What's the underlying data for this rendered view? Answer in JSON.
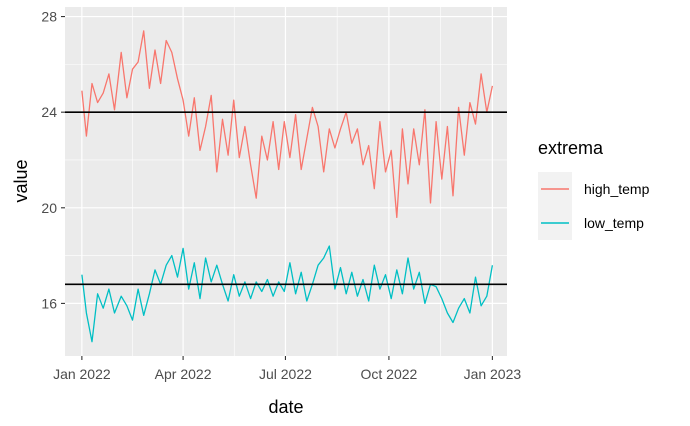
{
  "chart_data": {
    "type": "line",
    "title": "",
    "xlabel": "date",
    "ylabel": "value",
    "xlim": [
      "2021-12-17",
      "2023-01-14"
    ],
    "ylim": [
      13.8,
      28.4
    ],
    "x_ticks": [
      {
        "date": "2022-01-01",
        "label": "Jan 2022"
      },
      {
        "date": "2022-04-01",
        "label": "Apr 2022"
      },
      {
        "date": "2022-07-01",
        "label": "Jul 2022"
      },
      {
        "date": "2022-10-01",
        "label": "Oct 2022"
      },
      {
        "date": "2023-01-01",
        "label": "Jan 2023"
      }
    ],
    "y_ticks": [
      16,
      20,
      24,
      28
    ],
    "grid": true,
    "panel_background": "#EBEBEB",
    "legend": {
      "title": "extrema",
      "position": "right",
      "entries": [
        {
          "label": "high_temp",
          "color": "#F8766D"
        },
        {
          "label": "low_temp",
          "color": "#00BFC4"
        }
      ]
    },
    "hlines": [
      24.0,
      16.8
    ],
    "series": [
      {
        "name": "high_temp",
        "color": "#F8766D",
        "x": [
          "2022-01-01",
          "2022-01-05",
          "2022-01-10",
          "2022-01-15",
          "2022-01-20",
          "2022-01-25",
          "2022-01-30",
          "2022-02-05",
          "2022-02-10",
          "2022-02-15",
          "2022-02-20",
          "2022-02-25",
          "2022-03-02",
          "2022-03-07",
          "2022-03-12",
          "2022-03-17",
          "2022-03-22",
          "2022-03-27",
          "2022-04-01",
          "2022-04-06",
          "2022-04-11",
          "2022-04-16",
          "2022-04-21",
          "2022-04-26",
          "2022-05-01",
          "2022-05-06",
          "2022-05-11",
          "2022-05-16",
          "2022-05-21",
          "2022-05-26",
          "2022-05-31",
          "2022-06-05",
          "2022-06-10",
          "2022-06-15",
          "2022-06-20",
          "2022-06-25",
          "2022-06-30",
          "2022-07-05",
          "2022-07-10",
          "2022-07-15",
          "2022-07-20",
          "2022-07-25",
          "2022-07-30",
          "2022-08-04",
          "2022-08-09",
          "2022-08-14",
          "2022-08-19",
          "2022-08-24",
          "2022-08-29",
          "2022-09-03",
          "2022-09-08",
          "2022-09-13",
          "2022-09-18",
          "2022-09-23",
          "2022-09-28",
          "2022-10-03",
          "2022-10-08",
          "2022-10-13",
          "2022-10-18",
          "2022-10-23",
          "2022-10-28",
          "2022-11-02",
          "2022-11-07",
          "2022-11-12",
          "2022-11-17",
          "2022-11-22",
          "2022-11-27",
          "2022-12-02",
          "2022-12-07",
          "2022-12-12",
          "2022-12-17",
          "2022-12-22",
          "2022-12-27",
          "2023-01-01"
        ],
        "values": [
          24.9,
          23.0,
          25.2,
          24.4,
          24.8,
          25.6,
          24.1,
          26.5,
          24.6,
          25.8,
          26.1,
          27.4,
          25.0,
          26.6,
          25.2,
          27.0,
          26.5,
          25.4,
          24.5,
          23.0,
          24.6,
          22.4,
          23.4,
          24.7,
          21.5,
          23.7,
          22.2,
          24.5,
          22.1,
          23.4,
          21.8,
          20.4,
          23.0,
          22.0,
          23.6,
          21.6,
          23.6,
          22.1,
          23.9,
          21.6,
          22.9,
          24.2,
          23.4,
          21.5,
          23.3,
          22.5,
          23.3,
          24.0,
          22.7,
          23.3,
          21.8,
          22.6,
          20.8,
          23.6,
          21.5,
          22.4,
          19.6,
          23.3,
          21.0,
          23.3,
          21.8,
          24.1,
          20.2,
          23.6,
          21.2,
          23.4,
          20.5,
          24.2,
          22.2,
          24.4,
          23.5,
          25.6,
          24.0,
          25.1
        ]
      },
      {
        "name": "low_temp",
        "color": "#00BFC4",
        "x": [
          "2022-01-01",
          "2022-01-05",
          "2022-01-10",
          "2022-01-15",
          "2022-01-20",
          "2022-01-25",
          "2022-01-30",
          "2022-02-05",
          "2022-02-10",
          "2022-02-15",
          "2022-02-20",
          "2022-02-25",
          "2022-03-02",
          "2022-03-07",
          "2022-03-12",
          "2022-03-17",
          "2022-03-22",
          "2022-03-27",
          "2022-04-01",
          "2022-04-06",
          "2022-04-11",
          "2022-04-16",
          "2022-04-21",
          "2022-04-26",
          "2022-05-01",
          "2022-05-06",
          "2022-05-11",
          "2022-05-16",
          "2022-05-21",
          "2022-05-26",
          "2022-05-31",
          "2022-06-05",
          "2022-06-10",
          "2022-06-15",
          "2022-06-20",
          "2022-06-25",
          "2022-06-30",
          "2022-07-05",
          "2022-07-10",
          "2022-07-15",
          "2022-07-20",
          "2022-07-25",
          "2022-07-30",
          "2022-08-04",
          "2022-08-09",
          "2022-08-14",
          "2022-08-19",
          "2022-08-24",
          "2022-08-29",
          "2022-09-03",
          "2022-09-08",
          "2022-09-13",
          "2022-09-18",
          "2022-09-23",
          "2022-09-28",
          "2022-10-03",
          "2022-10-08",
          "2022-10-13",
          "2022-10-18",
          "2022-10-23",
          "2022-10-28",
          "2022-11-02",
          "2022-11-07",
          "2022-11-12",
          "2022-11-17",
          "2022-11-22",
          "2022-11-27",
          "2022-12-02",
          "2022-12-07",
          "2022-12-12",
          "2022-12-17",
          "2022-12-22",
          "2022-12-27",
          "2023-01-01"
        ],
        "values": [
          17.2,
          15.6,
          14.4,
          16.4,
          15.8,
          16.6,
          15.6,
          16.3,
          15.9,
          15.3,
          16.6,
          15.5,
          16.4,
          17.4,
          16.8,
          17.6,
          18.0,
          17.1,
          18.3,
          16.6,
          17.7,
          16.2,
          17.9,
          16.9,
          17.6,
          16.8,
          16.1,
          17.2,
          16.3,
          16.9,
          16.2,
          16.9,
          16.5,
          17.0,
          16.3,
          16.9,
          16.5,
          17.7,
          16.4,
          17.3,
          16.1,
          16.8,
          17.6,
          17.9,
          18.4,
          16.6,
          17.5,
          16.4,
          17.3,
          16.3,
          17.0,
          16.1,
          17.6,
          16.6,
          17.2,
          16.2,
          17.4,
          16.4,
          17.9,
          16.6,
          17.3,
          16.0,
          16.8,
          16.7,
          16.2,
          15.6,
          15.2,
          15.8,
          16.2,
          15.6,
          17.1,
          15.9,
          16.3,
          17.6
        ]
      }
    ]
  }
}
